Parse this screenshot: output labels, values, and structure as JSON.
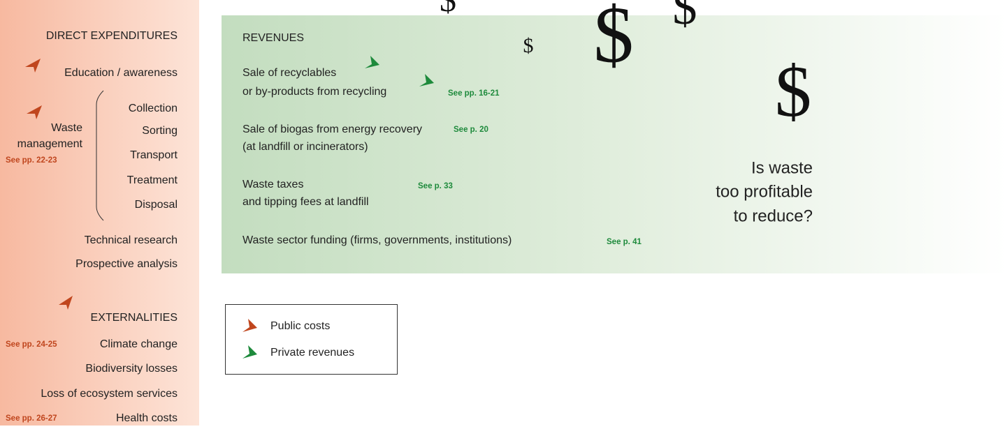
{
  "expenditures": {
    "title": "DIRECT EXPENDITURES",
    "education": "Education / awareness",
    "waste_management": {
      "lines": [
        "Waste",
        "management"
      ],
      "ref": "See pp. 22-23",
      "steps": [
        "Collection",
        "Sorting",
        "Transport",
        "Treatment",
        "Disposal"
      ]
    },
    "others": [
      "Technical research",
      "Prospective analysis"
    ]
  },
  "externalities": {
    "title": "EXTERNALITIES",
    "items": [
      {
        "label": "Climate change",
        "ref": "See pp. 24-25"
      },
      {
        "label": "Biodiversity losses"
      },
      {
        "label": "Loss of ecosystem services"
      },
      {
        "label": "Health costs",
        "ref": "See pp. 26-27"
      }
    ]
  },
  "revenues": {
    "title": "REVENUES",
    "items": [
      {
        "lines": [
          "Sale of recyclables",
          "or by-products from recycling"
        ],
        "ref": "See pp. 16-21"
      },
      {
        "lines": [
          "Sale of biogas from energy recovery",
          "(at landfill or incinerators)"
        ],
        "ref": "See p. 20"
      },
      {
        "lines": [
          "Waste taxes",
          "and tipping fees at landfill"
        ],
        "ref": "See p. 33"
      },
      {
        "lines": [
          "Waste sector funding (firms, governments, institutions)"
        ],
        "ref": "See p. 41"
      }
    ]
  },
  "question": [
    "Is waste",
    "too profitable",
    "to reduce?"
  ],
  "symbol": "$",
  "legend": [
    "Public costs",
    "Private revenues"
  ]
}
